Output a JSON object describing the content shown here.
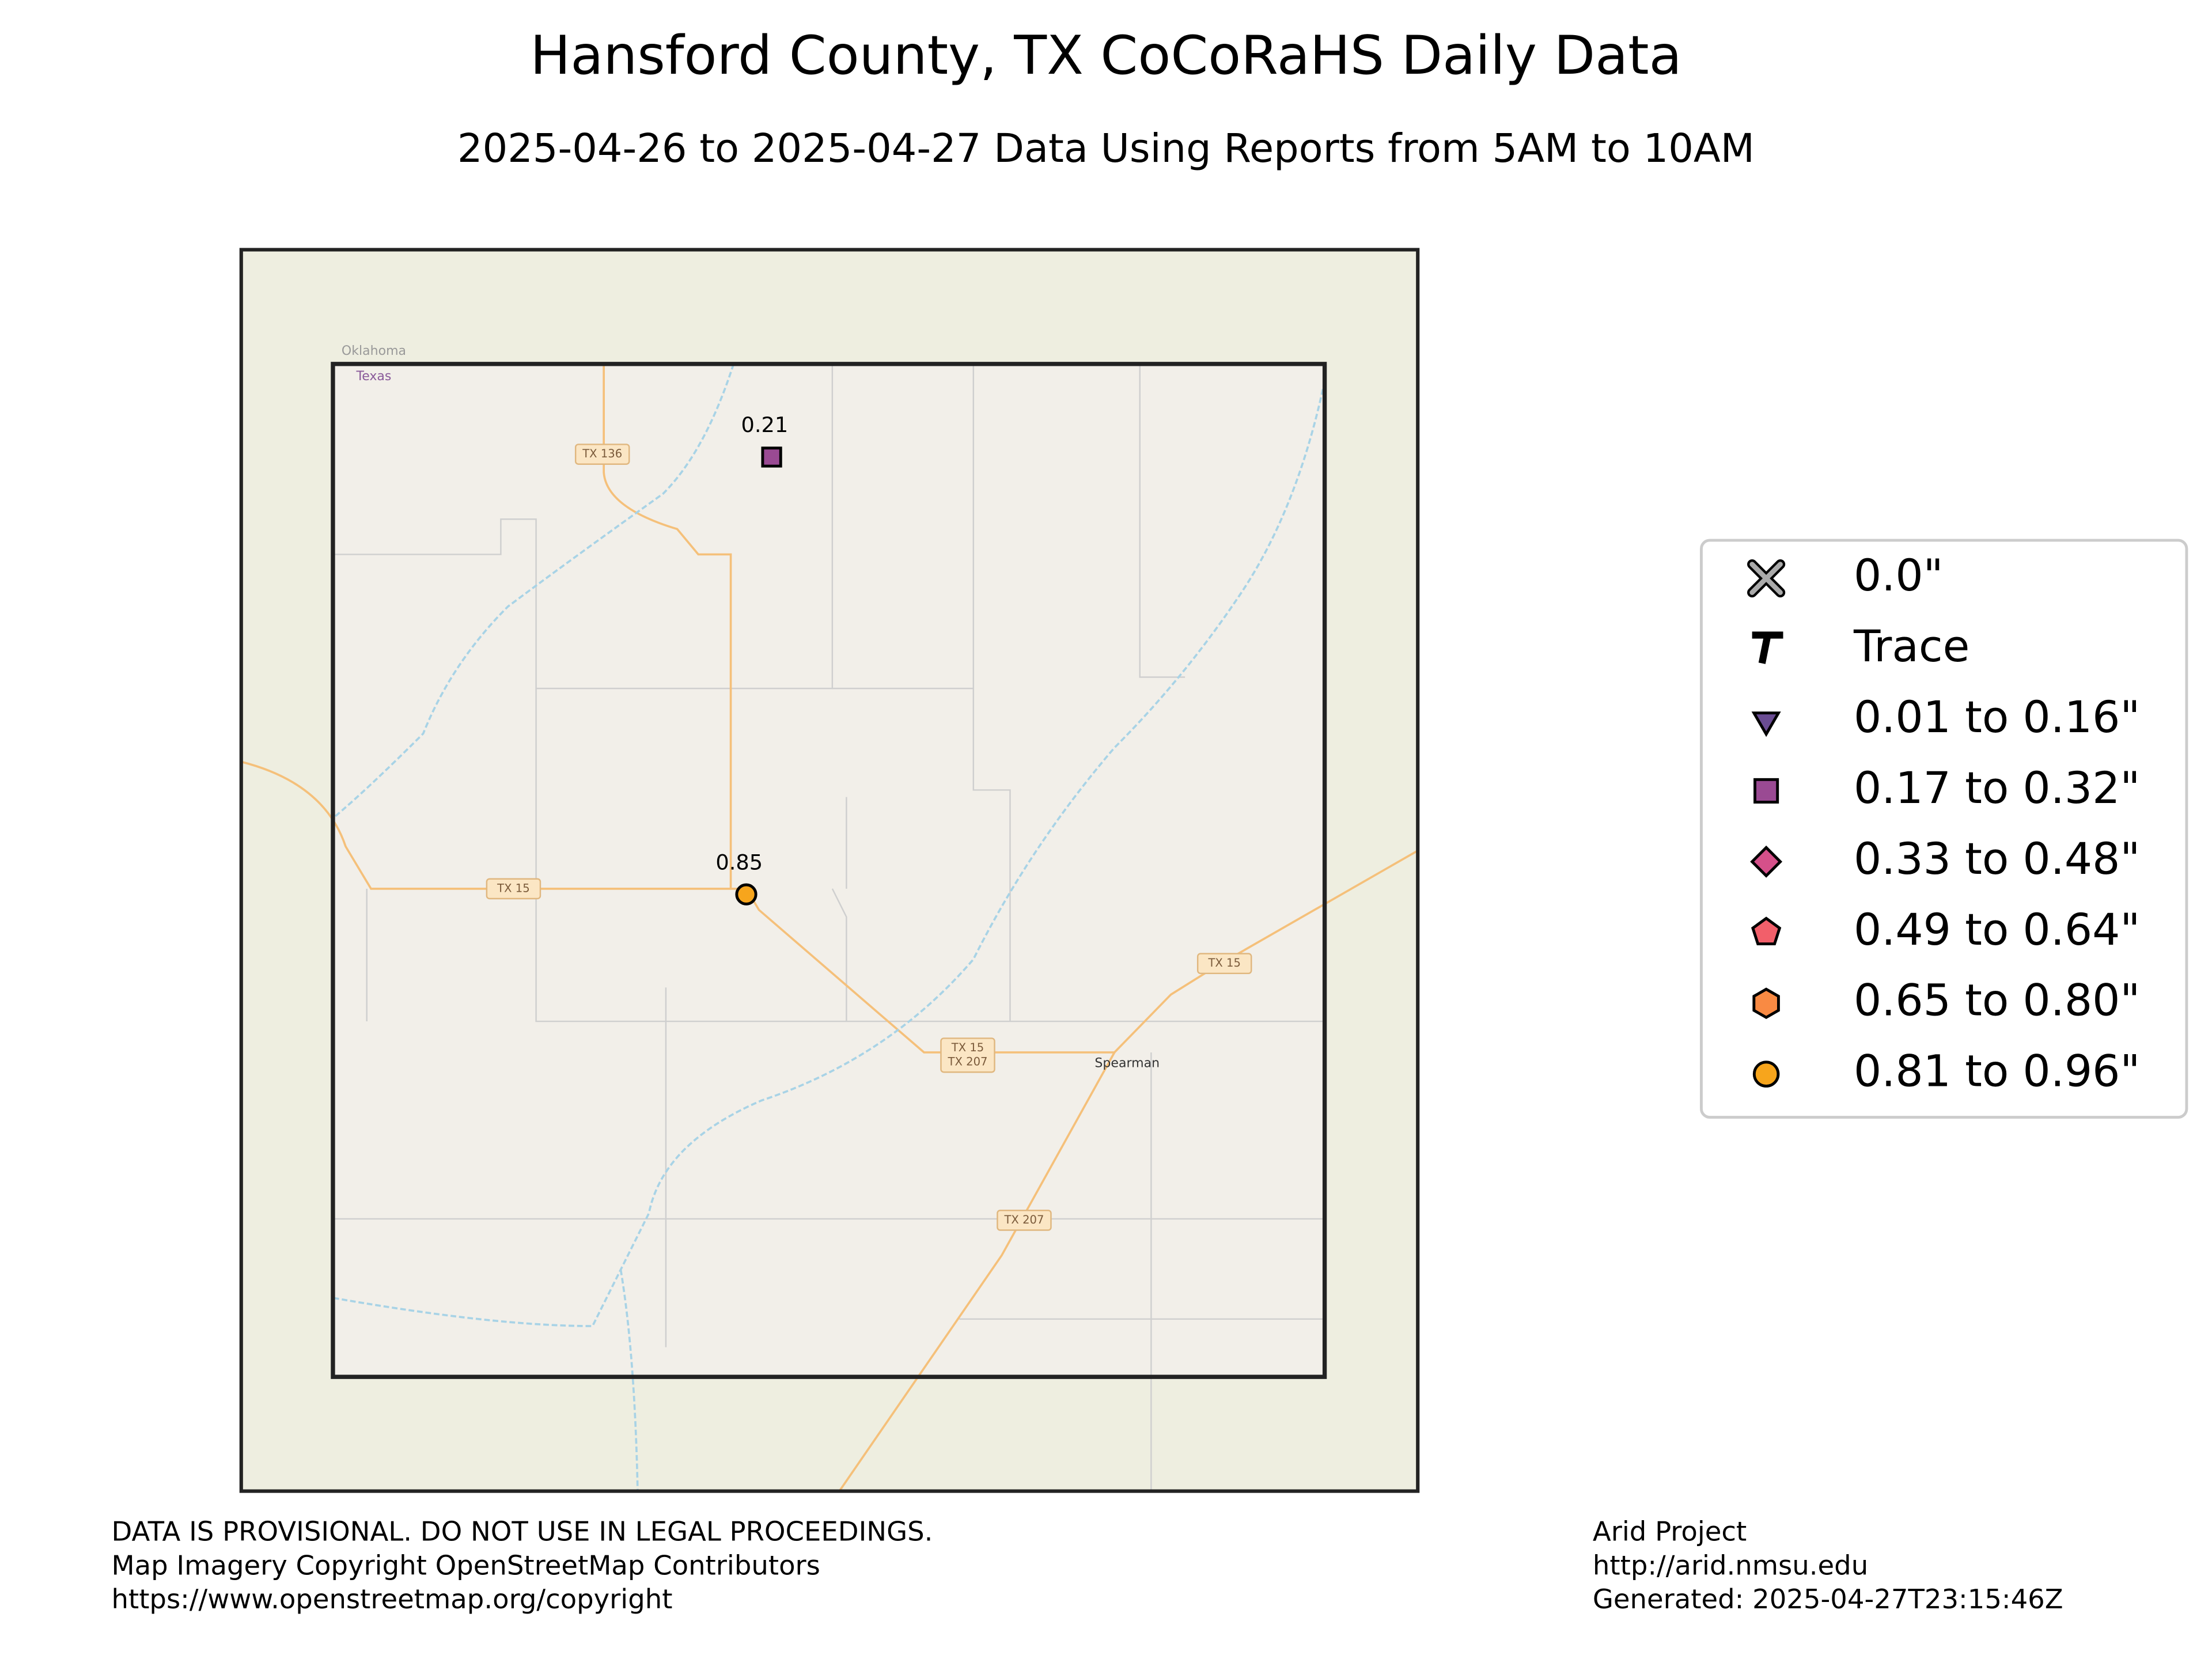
{
  "header": {
    "title": "Hansford County, TX CoCoRaHS Daily Data",
    "subtitle": "2025-04-26 to 2025-04-27 Data Using Reports from 5AM to 10AM"
  },
  "map_labels": [
    "Oklahoma",
    "Texas",
    "TX 136",
    "TX 15",
    "TX 15",
    "TX 15",
    "TX 207",
    "Spearman",
    "TX 207"
  ],
  "stations": [
    {
      "label": "0.21"
    },
    {
      "label": "0.85"
    }
  ],
  "legend": [
    "0.0\"",
    "Trace",
    "0.01 to 0.16\"",
    "0.17 to 0.32\"",
    "0.33 to 0.48\"",
    "0.49 to 0.64\"",
    "0.65 to 0.80\"",
    "0.81 to 0.96\""
  ],
  "footer": {
    "left": [
      "DATA IS PROVISIONAL. DO NOT USE IN LEGAL PROCEEDINGS.",
      "Map Imagery Copyright OpenStreetMap Contributors",
      "https://www.openstreetmap.org/copyright"
    ],
    "right": [
      "Arid Project",
      "http://arid.nmsu.edu",
      "Generated: 2025-04-27T23:15:46Z"
    ]
  }
}
